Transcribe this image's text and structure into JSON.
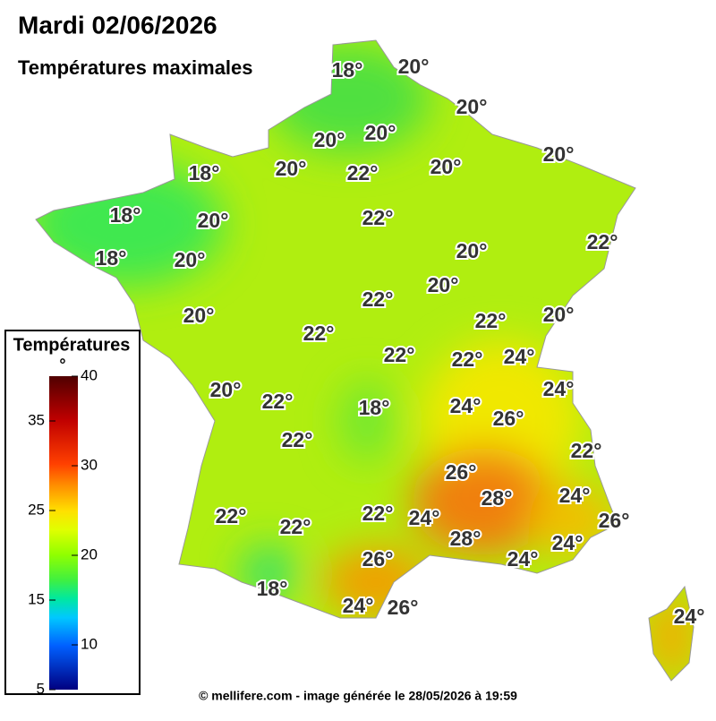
{
  "header": {
    "title": "Mardi 02/06/2026",
    "subtitle": "Températures maximales"
  },
  "legend": {
    "title": "Températures",
    "unit": "°",
    "range": [
      5,
      40
    ],
    "ticks": [
      40,
      35,
      30,
      25,
      20,
      15,
      10,
      5
    ]
  },
  "map": {
    "labels": [
      "18°",
      "20°",
      "20°",
      "20°",
      "20°",
      "20°",
      "18°",
      "20°",
      "22°",
      "20°",
      "18°",
      "20°",
      "22°",
      "22°",
      "18°",
      "20°",
      "20°",
      "20°",
      "22°",
      "22°",
      "20°",
      "20°",
      "22°",
      "22°",
      "22°",
      "24°",
      "24°",
      "20°",
      "22°",
      "18°",
      "24°",
      "26°",
      "22°",
      "22°",
      "26°",
      "28°",
      "24°",
      "22°",
      "22°",
      "22°",
      "24°",
      "26°",
      "28°",
      "24°",
      "24°",
      "26°",
      "18°",
      "24°",
      "26°",
      "24°"
    ]
  },
  "footer": {
    "text": "© mellifere.com - image générée le 28/05/2026 à 19:59"
  }
}
